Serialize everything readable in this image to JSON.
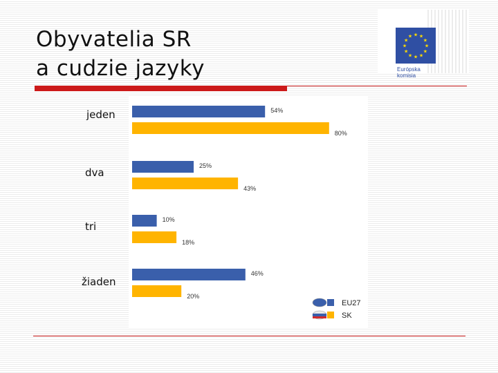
{
  "title": {
    "line1": "Obyvatelia SR",
    "line2": "a cudzie jazyky"
  },
  "logo": {
    "line1": "Európska",
    "line2": "komisia",
    "icon": "eu-flag-icon"
  },
  "chart_data": {
    "type": "bar",
    "orientation": "horizontal",
    "categories": [
      "jeden",
      "dva",
      "tri",
      "žiaden"
    ],
    "series": [
      {
        "name": "EU27",
        "values": [
          54,
          25,
          10,
          46
        ],
        "labels": [
          "54%",
          "25%",
          "10%",
          "46%"
        ],
        "color": "#3a5fab"
      },
      {
        "name": "SK",
        "values": [
          80,
          43,
          18,
          20
        ],
        "labels": [
          "80%",
          "43%",
          "18%",
          "20%"
        ],
        "color": "#ffb400"
      }
    ],
    "xlim": [
      0,
      100
    ],
    "grid": false,
    "legend_position": "bottom-right"
  }
}
